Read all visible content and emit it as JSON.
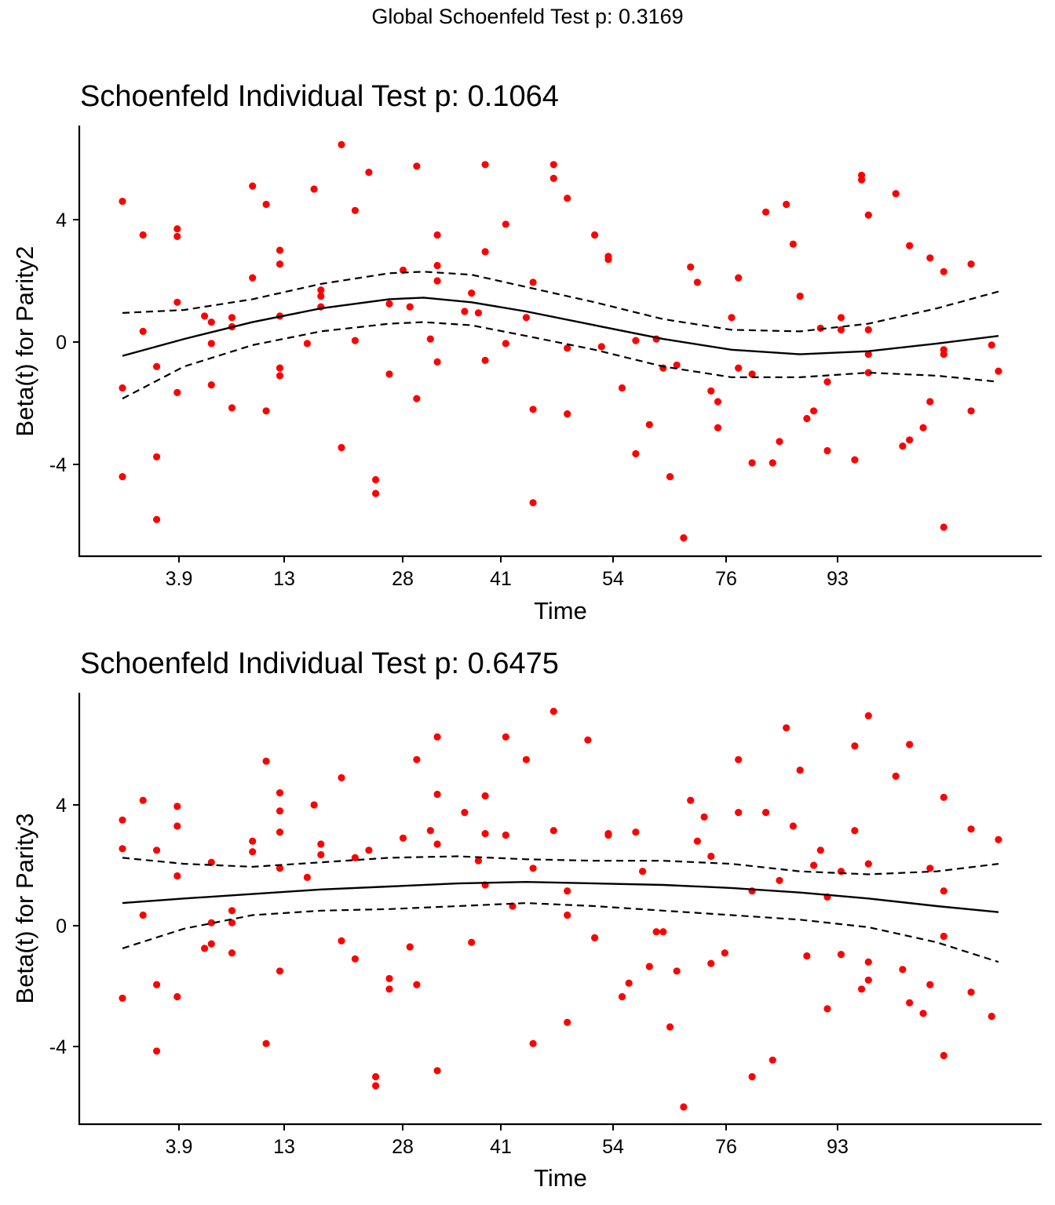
{
  "global_title": "Global Schoenfeld Test p: 0.3169",
  "colors": {
    "points": "#ff0000",
    "lines": "#000000"
  },
  "chart_data": [
    {
      "type": "scatter",
      "title": "Schoenfeld Individual Test p: 0.1064",
      "xlabel": "Time",
      "ylabel": "Beta(t) for Parity2",
      "x_ticks": [
        "3.9",
        "13",
        "28",
        "41",
        "54",
        "76",
        "93"
      ],
      "y_ticks": [
        "-4",
        "0",
        "4"
      ],
      "y_tick_values": [
        -4,
        0,
        4
      ],
      "x_scale": "rank-transformed time (tick positions 1-124)",
      "xlim": [
        1,
        124
      ],
      "ylim": [
        -6.9,
        7
      ],
      "grid": false,
      "points": [
        [
          1,
          4.6
        ],
        [
          1,
          -1.5
        ],
        [
          1,
          -4.4
        ],
        [
          4,
          3.5
        ],
        [
          4,
          0.35
        ],
        [
          6,
          -0.8
        ],
        [
          6,
          -3.75
        ],
        [
          6,
          -5.8
        ],
        [
          9,
          3.7
        ],
        [
          9,
          3.45
        ],
        [
          9,
          1.3
        ],
        [
          9,
          -1.65
        ],
        [
          13,
          0.85
        ],
        [
          14,
          0.65
        ],
        [
          14,
          -0.05
        ],
        [
          14,
          -1.4
        ],
        [
          17,
          0.8
        ],
        [
          17,
          0.5
        ],
        [
          17,
          -2.15
        ],
        [
          20,
          2.1
        ],
        [
          22,
          -2.25
        ],
        [
          22,
          4.5
        ],
        [
          20,
          5.1
        ],
        [
          24,
          3.0
        ],
        [
          24,
          2.55
        ],
        [
          24,
          0.85
        ],
        [
          24,
          -0.85
        ],
        [
          24,
          -1.1
        ],
        [
          28,
          -0.05
        ],
        [
          29,
          5.0
        ],
        [
          30,
          1.7
        ],
        [
          30,
          1.5
        ],
        [
          30,
          1.15
        ],
        [
          33,
          -3.45
        ],
        [
          33,
          6.45
        ],
        [
          35,
          0.05
        ],
        [
          35,
          4.3
        ],
        [
          37,
          5.55
        ],
        [
          38,
          -4.5
        ],
        [
          38,
          -4.95
        ],
        [
          40,
          1.25
        ],
        [
          40,
          -1.05
        ],
        [
          42,
          2.35
        ],
        [
          43,
          1.15
        ],
        [
          44,
          -1.85
        ],
        [
          44,
          5.75
        ],
        [
          46,
          0.1
        ],
        [
          47,
          3.5
        ],
        [
          47,
          2.5
        ],
        [
          47,
          2.0
        ],
        [
          47,
          -0.65
        ],
        [
          51,
          1.0
        ],
        [
          52,
          1.6
        ],
        [
          53,
          0.95
        ],
        [
          54,
          5.8
        ],
        [
          54,
          2.95
        ],
        [
          54,
          -0.6
        ],
        [
          57,
          3.85
        ],
        [
          57,
          -0.05
        ],
        [
          60,
          0.8
        ],
        [
          61,
          1.95
        ],
        [
          61,
          -2.2
        ],
        [
          61,
          -5.25
        ],
        [
          64,
          5.8
        ],
        [
          64,
          5.35
        ],
        [
          66,
          4.7
        ],
        [
          66,
          -0.2
        ],
        [
          66,
          -2.35
        ],
        [
          70,
          3.5
        ],
        [
          71,
          -0.15
        ],
        [
          72,
          2.8
        ],
        [
          72,
          2.7
        ],
        [
          74,
          -1.5
        ],
        [
          76,
          0.05
        ],
        [
          76,
          -3.65
        ],
        [
          78,
          -2.7
        ],
        [
          79,
          0.1
        ],
        [
          80,
          -0.85
        ],
        [
          81,
          -4.4
        ],
        [
          82,
          -0.75
        ],
        [
          83,
          -6.4
        ],
        [
          84,
          2.45
        ],
        [
          85,
          1.95
        ],
        [
          87,
          -1.6
        ],
        [
          88,
          -1.95
        ],
        [
          88,
          -2.8
        ],
        [
          90,
          0.8
        ],
        [
          91,
          2.1
        ],
        [
          91,
          -0.85
        ],
        [
          93,
          -1.05
        ],
        [
          93,
          -3.95
        ],
        [
          95,
          4.25
        ],
        [
          96,
          -3.95
        ],
        [
          97,
          -3.25
        ],
        [
          98,
          4.5
        ],
        [
          99,
          3.2
        ],
        [
          100,
          1.5
        ],
        [
          101,
          -2.5
        ],
        [
          102,
          -2.25
        ],
        [
          103,
          0.45
        ],
        [
          104,
          -1.3
        ],
        [
          104,
          -3.55
        ],
        [
          106,
          0.8
        ],
        [
          106,
          0.4
        ],
        [
          108,
          -3.85
        ],
        [
          109,
          5.45
        ],
        [
          109,
          5.3
        ],
        [
          110,
          4.15
        ],
        [
          110,
          0.4
        ],
        [
          110,
          -0.4
        ],
        [
          110,
          -1.0
        ],
        [
          114,
          4.85
        ],
        [
          115,
          -3.4
        ],
        [
          116,
          3.15
        ],
        [
          116,
          -3.2
        ],
        [
          118,
          -2.8
        ],
        [
          119,
          2.75
        ],
        [
          119,
          -1.95
        ],
        [
          121,
          2.3
        ],
        [
          121,
          -0.25
        ],
        [
          121,
          -0.4
        ],
        [
          121,
          -6.05
        ],
        [
          125,
          2.55
        ],
        [
          125,
          -2.25
        ],
        [
          128,
          -0.1
        ],
        [
          129,
          -0.95
        ]
      ],
      "fit": [
        [
          1,
          -0.45
        ],
        [
          10,
          0.1
        ],
        [
          20,
          0.65
        ],
        [
          30,
          1.1
        ],
        [
          40,
          1.4
        ],
        [
          45,
          1.45
        ],
        [
          52,
          1.3
        ],
        [
          60,
          1.0
        ],
        [
          70,
          0.55
        ],
        [
          80,
          0.1
        ],
        [
          90,
          -0.25
        ],
        [
          100,
          -0.4
        ],
        [
          110,
          -0.3
        ],
        [
          120,
          -0.05
        ],
        [
          129,
          0.2
        ]
      ],
      "upper_band": [
        [
          1,
          0.95
        ],
        [
          10,
          1.05
        ],
        [
          20,
          1.4
        ],
        [
          30,
          1.9
        ],
        [
          40,
          2.25
        ],
        [
          45,
          2.3
        ],
        [
          52,
          2.2
        ],
        [
          60,
          1.8
        ],
        [
          70,
          1.3
        ],
        [
          80,
          0.75
        ],
        [
          90,
          0.4
        ],
        [
          100,
          0.35
        ],
        [
          110,
          0.6
        ],
        [
          120,
          1.1
        ],
        [
          129,
          1.65
        ]
      ],
      "lower_band": [
        [
          1,
          -1.85
        ],
        [
          10,
          -0.8
        ],
        [
          20,
          -0.1
        ],
        [
          30,
          0.35
        ],
        [
          40,
          0.6
        ],
        [
          45,
          0.65
        ],
        [
          52,
          0.55
        ],
        [
          60,
          0.2
        ],
        [
          70,
          -0.25
        ],
        [
          80,
          -0.8
        ],
        [
          90,
          -1.15
        ],
        [
          100,
          -1.15
        ],
        [
          110,
          -1.0
        ],
        [
          120,
          -1.1
        ],
        [
          129,
          -1.3
        ]
      ]
    },
    {
      "type": "scatter",
      "title": "Schoenfeld Individual Test p: 0.6475",
      "xlabel": "Time",
      "ylabel": "Beta(t) for Parity3",
      "x_ticks": [
        "3.9",
        "13",
        "28",
        "41",
        "54",
        "76",
        "93"
      ],
      "y_ticks": [
        "-4",
        "0",
        "4"
      ],
      "y_tick_values": [
        -4,
        0,
        4
      ],
      "x_scale": "rank-transformed time (tick positions 1-124)",
      "xlim": [
        1,
        124
      ],
      "ylim": [
        -6.5,
        7.4
      ],
      "grid": false,
      "points": [
        [
          1,
          3.5
        ],
        [
          1,
          2.55
        ],
        [
          1,
          -2.4
        ],
        [
          4,
          4.15
        ],
        [
          4,
          0.35
        ],
        [
          6,
          2.5
        ],
        [
          6,
          -1.95
        ],
        [
          6,
          -4.15
        ],
        [
          9,
          3.95
        ],
        [
          9,
          3.3
        ],
        [
          9,
          1.65
        ],
        [
          9,
          -2.35
        ],
        [
          13,
          -0.75
        ],
        [
          14,
          2.1
        ],
        [
          14,
          0.1
        ],
        [
          14,
          -0.6
        ],
        [
          17,
          0.5
        ],
        [
          17,
          0.1
        ],
        [
          17,
          -0.9
        ],
        [
          20,
          2.8
        ],
        [
          20,
          2.45
        ],
        [
          22,
          5.45
        ],
        [
          22,
          -3.9
        ],
        [
          24,
          4.4
        ],
        [
          24,
          3.8
        ],
        [
          24,
          3.1
        ],
        [
          24,
          1.9
        ],
        [
          24,
          -1.5
        ],
        [
          28,
          1.6
        ],
        [
          29,
          4.0
        ],
        [
          30,
          2.7
        ],
        [
          30,
          2.35
        ],
        [
          33,
          4.9
        ],
        [
          33,
          -0.5
        ],
        [
          35,
          2.25
        ],
        [
          35,
          -1.1
        ],
        [
          37,
          2.5
        ],
        [
          38,
          -5.0
        ],
        [
          38,
          -5.3
        ],
        [
          40,
          -1.75
        ],
        [
          40,
          -2.1
        ],
        [
          42,
          2.9
        ],
        [
          43,
          -0.7
        ],
        [
          44,
          5.5
        ],
        [
          44,
          -1.95
        ],
        [
          46,
          3.15
        ],
        [
          47,
          6.25
        ],
        [
          47,
          4.35
        ],
        [
          47,
          2.7
        ],
        [
          47,
          -4.8
        ],
        [
          51,
          3.75
        ],
        [
          52,
          -0.55
        ],
        [
          53,
          2.15
        ],
        [
          54,
          4.3
        ],
        [
          54,
          3.05
        ],
        [
          54,
          1.35
        ],
        [
          57,
          6.25
        ],
        [
          57,
          3.0
        ],
        [
          58,
          0.65
        ],
        [
          60,
          5.5
        ],
        [
          61,
          1.9
        ],
        [
          61,
          -3.9
        ],
        [
          64,
          7.1
        ],
        [
          64,
          3.15
        ],
        [
          66,
          1.15
        ],
        [
          66,
          0.35
        ],
        [
          66,
          -3.2
        ],
        [
          69,
          6.15
        ],
        [
          70,
          -0.4
        ],
        [
          72,
          3.05
        ],
        [
          72,
          3.0
        ],
        [
          74,
          -2.35
        ],
        [
          75,
          -1.9
        ],
        [
          76,
          3.1
        ],
        [
          77,
          1.8
        ],
        [
          78,
          -1.35
        ],
        [
          79,
          -0.2
        ],
        [
          80,
          -0.2
        ],
        [
          81,
          -3.35
        ],
        [
          82,
          -1.5
        ],
        [
          83,
          -6.0
        ],
        [
          84,
          4.15
        ],
        [
          85,
          2.8
        ],
        [
          86,
          3.6
        ],
        [
          87,
          2.3
        ],
        [
          87,
          -1.25
        ],
        [
          89,
          -0.9
        ],
        [
          91,
          5.5
        ],
        [
          91,
          3.75
        ],
        [
          93,
          1.15
        ],
        [
          93,
          -5.0
        ],
        [
          95,
          3.75
        ],
        [
          96,
          -4.45
        ],
        [
          97,
          1.5
        ],
        [
          98,
          6.55
        ],
        [
          99,
          3.3
        ],
        [
          100,
          5.15
        ],
        [
          101,
          -1.0
        ],
        [
          102,
          2.0
        ],
        [
          103,
          2.5
        ],
        [
          104,
          0.95
        ],
        [
          104,
          -2.75
        ],
        [
          106,
          1.8
        ],
        [
          106,
          -0.95
        ],
        [
          108,
          5.95
        ],
        [
          108,
          3.15
        ],
        [
          109,
          -2.1
        ],
        [
          110,
          6.95
        ],
        [
          110,
          2.05
        ],
        [
          110,
          -1.2
        ],
        [
          110,
          -1.8
        ],
        [
          114,
          4.95
        ],
        [
          115,
          -1.45
        ],
        [
          116,
          6.0
        ],
        [
          116,
          -2.55
        ],
        [
          118,
          -2.9
        ],
        [
          119,
          1.9
        ],
        [
          119,
          -1.95
        ],
        [
          121,
          4.25
        ],
        [
          121,
          1.15
        ],
        [
          121,
          -0.35
        ],
        [
          121,
          -4.3
        ],
        [
          125,
          3.2
        ],
        [
          125,
          -2.2
        ],
        [
          128,
          -3.0
        ],
        [
          129,
          2.85
        ]
      ],
      "fit": [
        [
          1,
          0.75
        ],
        [
          10,
          0.9
        ],
        [
          20,
          1.05
        ],
        [
          30,
          1.2
        ],
        [
          40,
          1.3
        ],
        [
          50,
          1.4
        ],
        [
          60,
          1.45
        ],
        [
          70,
          1.4
        ],
        [
          80,
          1.35
        ],
        [
          90,
          1.25
        ],
        [
          100,
          1.1
        ],
        [
          110,
          0.9
        ],
        [
          120,
          0.65
        ],
        [
          129,
          0.45
        ]
      ],
      "upper_band": [
        [
          1,
          2.25
        ],
        [
          10,
          2.05
        ],
        [
          20,
          1.95
        ],
        [
          30,
          2.1
        ],
        [
          40,
          2.25
        ],
        [
          50,
          2.3
        ],
        [
          60,
          2.2
        ],
        [
          70,
          2.15
        ],
        [
          80,
          2.15
        ],
        [
          90,
          2.05
        ],
        [
          100,
          1.8
        ],
        [
          110,
          1.7
        ],
        [
          120,
          1.8
        ],
        [
          129,
          2.05
        ]
      ],
      "lower_band": [
        [
          1,
          -0.75
        ],
        [
          10,
          -0.1
        ],
        [
          20,
          0.35
        ],
        [
          30,
          0.5
        ],
        [
          40,
          0.55
        ],
        [
          50,
          0.65
        ],
        [
          60,
          0.75
        ],
        [
          70,
          0.65
        ],
        [
          80,
          0.5
        ],
        [
          90,
          0.35
        ],
        [
          100,
          0.2
        ],
        [
          110,
          -0.05
        ],
        [
          120,
          -0.55
        ],
        [
          129,
          -1.2
        ]
      ]
    }
  ]
}
